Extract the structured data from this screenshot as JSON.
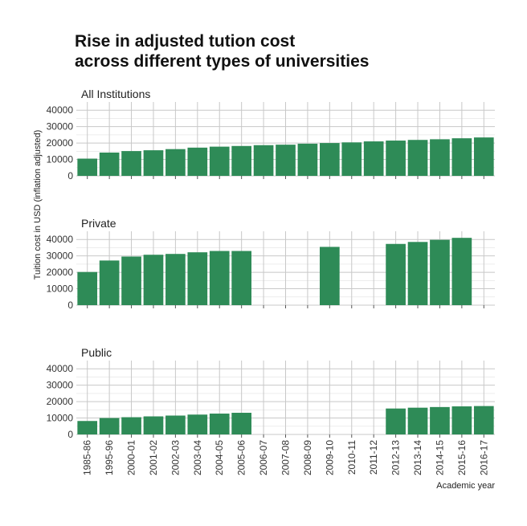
{
  "chart_data": {
    "type": "bar",
    "title": [
      "Rise in adjusted tution cost",
      "across different types of universities"
    ],
    "xlabel": "Academic year",
    "ylabel": "Tuition cost in USD (inflation adjusted)",
    "ylim": [
      0,
      45000
    ],
    "yticks": [
      0,
      10000,
      20000,
      30000,
      40000
    ],
    "categories": [
      "1985-86",
      "1995-96",
      "2000-01",
      "2001-02",
      "2002-03",
      "2003-04",
      "2004-05",
      "2005-06",
      "2006-07",
      "2007-08",
      "2008-09",
      "2009-10",
      "2010-11",
      "2011-12",
      "2012-13",
      "2013-14",
      "2014-15",
      "2015-16",
      "2016-17"
    ],
    "bar_color": "#2e8b57",
    "grid": true,
    "panels": [
      {
        "name": "All Institutions",
        "values": [
          10500,
          14200,
          15100,
          15600,
          16300,
          17200,
          17800,
          18200,
          18700,
          19000,
          19600,
          20000,
          20400,
          21000,
          21500,
          21900,
          22300,
          22900,
          23400
        ]
      },
      {
        "name": "Private",
        "values": [
          20200,
          27200,
          29600,
          30700,
          31200,
          32200,
          33000,
          33000,
          null,
          null,
          null,
          35500,
          null,
          null,
          37300,
          38500,
          39800,
          41000,
          null
        ]
      },
      {
        "name": "Public",
        "values": [
          8200,
          10000,
          10500,
          11000,
          11500,
          12100,
          12700,
          13200,
          null,
          null,
          null,
          null,
          null,
          null,
          15800,
          16300,
          16700,
          17100,
          17300
        ]
      }
    ]
  }
}
